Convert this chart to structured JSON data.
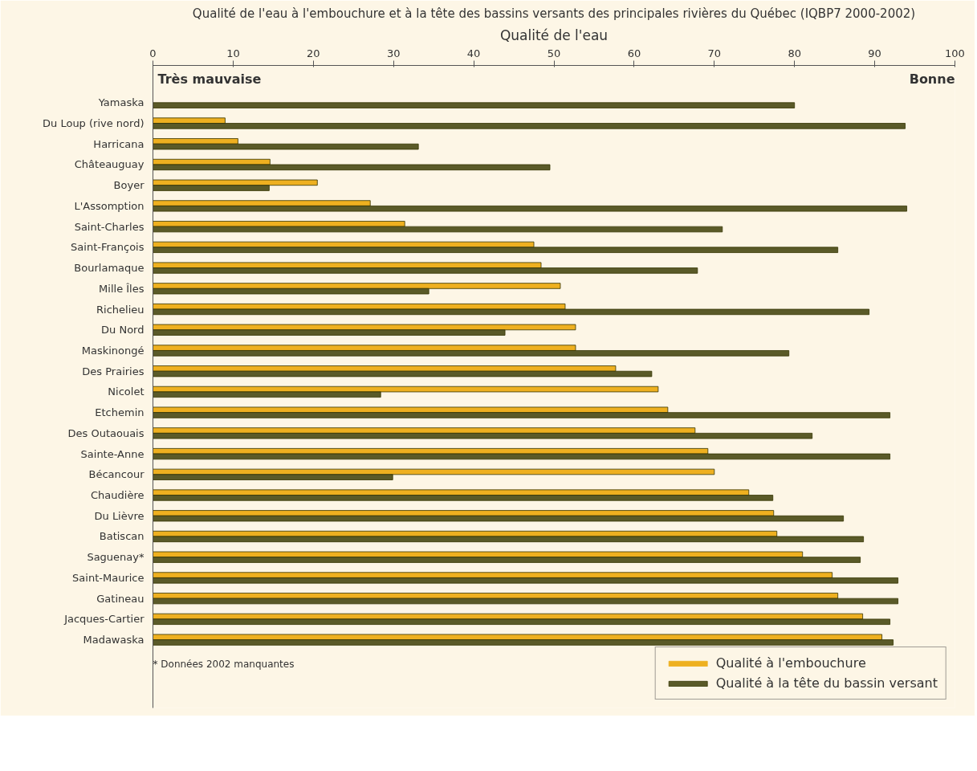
{
  "chart_data": {
    "type": "bar",
    "orientation": "horizontal",
    "title": "Qualité de l'eau à l'embouchure et à la tête des bassins versants des principales rivières du Québec (IQBP7 2000-2002)",
    "xlabel": "Qualité de l'eau",
    "annotations": [
      "Très mauvaise",
      "Bonne",
      "* Données 2002 manquantes"
    ],
    "categories": [
      "Yamaska",
      "Du Loup (rive nord)",
      "Harricana",
      "Châteauguay",
      "Boyer",
      "L'Assomption",
      "Saint-Charles",
      "Saint-François",
      "Bourlamaque",
      "Mille Îles",
      "Richelieu",
      "Du Nord",
      "Maskinongé",
      "Des Prairies",
      "Nicolet",
      "Etchemin",
      "Des Outaouais",
      "Sainte-Anne",
      "Bécancour",
      "Chaudière",
      "Du Lièvre",
      "Batiscan",
      "Saguenay*",
      "Saint-Maurice",
      "Gatineau",
      "Jacques-Cartier",
      "Madawaska"
    ],
    "series": [
      {
        "name": "Qualité à l'embouchure",
        "color": "#eeb020",
        "values": [
          0,
          9.0,
          10.6,
          14.6,
          20.5,
          27.1,
          31.4,
          47.5,
          48.4,
          50.8,
          51.4,
          52.7,
          52.7,
          57.7,
          63.0,
          64.2,
          67.6,
          69.2,
          70.0,
          74.3,
          77.4,
          77.8,
          81.0,
          84.7,
          85.4,
          88.5,
          90.9
        ]
      },
      {
        "name": "Qualité à la tête du bassin versant",
        "color": "#5a5a28",
        "values": [
          80.0,
          93.8,
          33.1,
          49.5,
          14.5,
          94.0,
          71.0,
          85.4,
          67.9,
          34.4,
          89.3,
          43.9,
          79.3,
          62.2,
          28.4,
          91.9,
          82.2,
          91.9,
          29.9,
          77.3,
          86.1,
          88.6,
          88.2,
          92.9,
          92.9,
          91.9,
          92.3
        ]
      }
    ],
    "xlim": [
      0,
      100
    ],
    "xticks": [
      0,
      10,
      20,
      30,
      40,
      50,
      60,
      70,
      80,
      90,
      100
    ],
    "grid": false,
    "legend": "bottom right"
  }
}
